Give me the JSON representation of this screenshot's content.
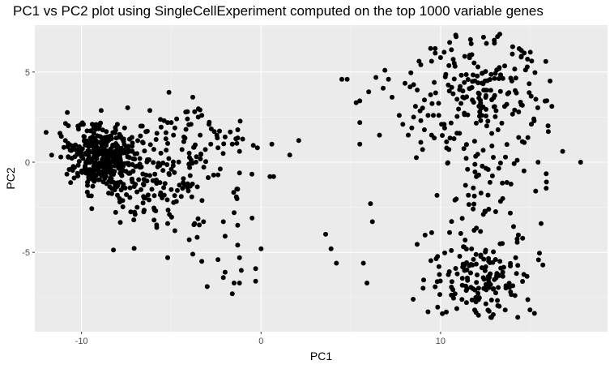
{
  "chart_data": {
    "type": "scatter",
    "title": "PC1 vs PC2 plot using SingleCellExperiment computed on the top 1000 variable genes",
    "xlabel": "PC1",
    "ylabel": "PC2",
    "xlim": [
      -12.6,
      19.3
    ],
    "ylim": [
      -9.4,
      7.6
    ],
    "xticks": [
      -10,
      0,
      10
    ],
    "xtick_labels": [
      "-10",
      "0",
      "10"
    ],
    "yticks": [
      -5,
      0,
      5
    ],
    "ytick_labels": [
      "-5",
      "0",
      "5"
    ],
    "grid": true,
    "background": "#ebebeb",
    "point_color": "#000000",
    "clusters": [
      {
        "cx": -8.7,
        "cy": 0.2,
        "sx": 1.1,
        "sy": 0.85,
        "n": 420,
        "rot": -0.45
      },
      {
        "cx": -5.5,
        "cy": -1.2,
        "sx": 1.6,
        "sy": 1.7,
        "n": 110,
        "rot": -0.2
      },
      {
        "cx": -3.0,
        "cy": 0.8,
        "sx": 1.4,
        "sy": 1.2,
        "n": 35,
        "rot": 0.3
      },
      {
        "cx": 12.2,
        "cy": 3.8,
        "sx": 1.8,
        "sy": 1.5,
        "n": 170,
        "rot": 0.0
      },
      {
        "cx": 12.5,
        "cy": -1.2,
        "sx": 1.6,
        "sy": 1.9,
        "n": 80,
        "rot": 0.0
      },
      {
        "cx": 12.3,
        "cy": -6.4,
        "sx": 1.5,
        "sy": 1.1,
        "n": 140,
        "rot": 0.0
      }
    ],
    "points": [
      [
        -11.2,
        1.6
      ],
      [
        -10.9,
        1.2
      ],
      [
        -10.5,
        0.9
      ],
      [
        -10.2,
        2.0
      ],
      [
        -9.9,
        2.1
      ],
      [
        -9.4,
        2.1
      ],
      [
        -9.0,
        2.0
      ],
      [
        -8.0,
        2.1
      ],
      [
        -7.6,
        1.9
      ],
      [
        -6.7,
        2.0
      ],
      [
        -7.5,
        -1.8
      ],
      [
        -6.9,
        -2.5
      ],
      [
        -5.8,
        1.6
      ],
      [
        -5.4,
        2.3
      ],
      [
        -5.2,
        2.2
      ],
      [
        -5.0,
        2.2
      ],
      [
        -4.8,
        1.9
      ],
      [
        -4.7,
        2.4
      ],
      [
        -5.3,
        1.3
      ],
      [
        -4.3,
        1.4
      ],
      [
        -4.1,
        2.4
      ],
      [
        -3.9,
        2.1
      ],
      [
        -3.7,
        2.8
      ],
      [
        -3.4,
        2.9
      ],
      [
        -3.3,
        2.6
      ],
      [
        -2.9,
        2.1
      ],
      [
        -2.4,
        0.8
      ],
      [
        -2.0,
        1.4
      ],
      [
        -1.6,
        1.0
      ],
      [
        -1.2,
        0.6
      ],
      [
        -1.4,
        1.3
      ],
      [
        -0.2,
        0.8
      ],
      [
        -1.2,
        -0.6
      ],
      [
        -1.3,
        -1.5
      ],
      [
        -2.4,
        -0.7
      ],
      [
        -1.3,
        -3.5
      ],
      [
        -1.3,
        -4.6
      ],
      [
        -3.2,
        -3.3
      ],
      [
        -3.7,
        -3.4
      ],
      [
        -4.0,
        -4.3
      ],
      [
        -5.2,
        -3.4
      ],
      [
        -4.8,
        -3.8
      ],
      [
        -5.1,
        -2.9
      ],
      [
        -5.2,
        -5.3
      ],
      [
        -3.8,
        -5.1
      ],
      [
        -3.3,
        -5.5
      ],
      [
        -2.0,
        -4.1
      ],
      [
        -2.1,
        -3.3
      ],
      [
        -1.5,
        -2.8
      ],
      [
        -1.5,
        -6.7
      ],
      [
        -2.0,
        -6.1
      ],
      [
        -2.1,
        -6.4
      ],
      [
        -1.1,
        -6.0
      ],
      [
        0.0,
        -4.8
      ],
      [
        -0.3,
        -5.9
      ],
      [
        -0.3,
        -6.6
      ],
      [
        -1.2,
        -6.7
      ],
      [
        -1.6,
        -7.3
      ],
      [
        -2.4,
        -5.4
      ],
      [
        -3.0,
        -6.9
      ],
      [
        -1.2,
        -5.3
      ],
      [
        -0.5,
        -3.1
      ],
      [
        -3.5,
        2.5
      ],
      [
        -3.8,
        3.6
      ],
      [
        -4.1,
        2.8
      ],
      [
        -2.6,
        1.7
      ],
      [
        -2.8,
        1.0
      ],
      [
        -3.1,
        0.7
      ],
      [
        -3.6,
        0.3
      ],
      [
        -4.0,
        0.5
      ],
      [
        -4.4,
        0.7
      ],
      [
        0.5,
        -0.8
      ],
      [
        0.7,
        -0.8
      ],
      [
        0.6,
        1.0
      ],
      [
        1.6,
        0.4
      ],
      [
        2.1,
        1.2
      ],
      [
        4.5,
        4.6
      ],
      [
        4.8,
        4.6
      ],
      [
        5.5,
        3.4
      ],
      [
        5.3,
        3.3
      ],
      [
        6.0,
        3.9
      ],
      [
        6.6,
        1.5
      ],
      [
        5.5,
        1.0
      ],
      [
        5.5,
        2.2
      ],
      [
        6.4,
        4.7
      ],
      [
        6.9,
        5.1
      ],
      [
        6.8,
        4.1
      ],
      [
        7.1,
        4.6
      ],
      [
        7.3,
        3.6
      ],
      [
        7.7,
        2.6
      ],
      [
        7.9,
        2.1
      ],
      [
        8.2,
        1.5
      ],
      [
        8.4,
        1.9
      ],
      [
        8.5,
        2.5
      ],
      [
        8.6,
        3.1
      ],
      [
        8.5,
        4.3
      ],
      [
        8.7,
        4.0
      ],
      [
        9.0,
        3.0
      ],
      [
        9.3,
        2.6
      ],
      [
        8.9,
        2.3
      ],
      [
        9.1,
        1.8
      ],
      [
        9.6,
        2.6
      ],
      [
        9.5,
        1.5
      ],
      [
        8.8,
        5.6
      ],
      [
        8.9,
        5.4
      ],
      [
        9.5,
        5.6
      ],
      [
        9.7,
        6.3
      ],
      [
        10.2,
        6.1
      ],
      [
        10.0,
        5.8
      ],
      [
        9.9,
        2.6
      ],
      [
        9.0,
        0.7
      ],
      [
        8.9,
        1.1
      ],
      [
        6.1,
        -2.3
      ],
      [
        6.2,
        -3.3
      ],
      [
        5.9,
        -6.7
      ],
      [
        5.7,
        -5.6
      ],
      [
        3.6,
        -4.0
      ],
      [
        3.9,
        -4.8
      ],
      [
        4.2,
        -5.6
      ],
      [
        10.1,
        -8.4
      ],
      [
        9.3,
        -8.3
      ],
      [
        10.6,
        -4.9
      ],
      [
        10.5,
        -3.9
      ],
      [
        10.8,
        -2.1
      ],
      [
        16.8,
        0.6
      ],
      [
        17.8,
        0.0
      ],
      [
        15.7,
        -5.7
      ],
      [
        15.6,
        -3.4
      ],
      [
        15.3,
        -1.6
      ],
      [
        16.2,
        3.1
      ],
      [
        16.1,
        4.5
      ],
      [
        13.0,
        6.6
      ],
      [
        13.3,
        7.1
      ],
      [
        14.0,
        6.0
      ],
      [
        14.5,
        6.2
      ],
      [
        15.0,
        6.1
      ],
      [
        16.0,
        1.7
      ],
      [
        15.9,
        -1.1
      ],
      [
        15.2,
        2.4
      ],
      [
        14.3,
        -8.6
      ],
      [
        13.6,
        -8.2
      ],
      [
        12.8,
        -8.6
      ],
      [
        11.9,
        -8.2
      ]
    ]
  }
}
